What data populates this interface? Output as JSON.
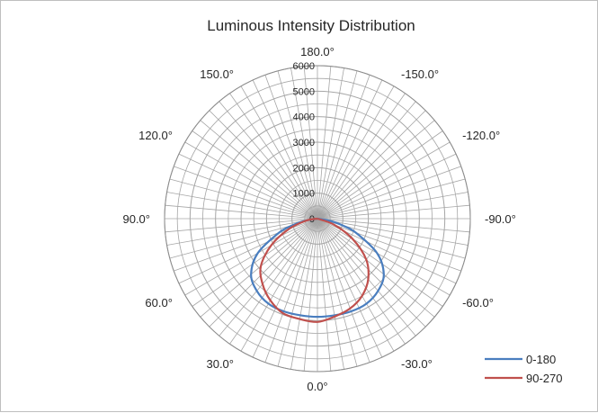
{
  "chart_data": {
    "type": "polar-line",
    "title": "Luminous Intensity Distribution",
    "radial_axis": {
      "min": 0,
      "max": 6000,
      "major_step": 1000,
      "minor_step": 500,
      "tick_labels": [
        "0",
        "1000",
        "2000",
        "3000",
        "4000",
        "5000",
        "6000"
      ]
    },
    "angular_axis": {
      "zero_at": "bottom",
      "spoke_step_deg": 5,
      "labels": [
        {
          "angle": 0,
          "text": "0.0°"
        },
        {
          "angle": 30,
          "text": "30.0°"
        },
        {
          "angle": 60,
          "text": "60.0°"
        },
        {
          "angle": 90,
          "text": "90.0°"
        },
        {
          "angle": 120,
          "text": "120.0°"
        },
        {
          "angle": 150,
          "text": "150.0°"
        },
        {
          "angle": 180,
          "text": "180.0°"
        },
        {
          "angle": -150,
          "text": "-150.0°"
        },
        {
          "angle": -120,
          "text": "-120.0°"
        },
        {
          "angle": -90,
          "text": "-90.0°"
        },
        {
          "angle": -60,
          "text": "-60.0°"
        },
        {
          "angle": -30,
          "text": "-30.0°"
        }
      ]
    },
    "legend_position": "bottom-right",
    "series": [
      {
        "name": "0-180",
        "color": "#4a7ebf",
        "points": [
          {
            "angle": -90,
            "r": 0
          },
          {
            "angle": -80,
            "r": 520
          },
          {
            "angle": -75,
            "r": 1000
          },
          {
            "angle": -70,
            "r": 1600
          },
          {
            "angle": -60,
            "r": 2700
          },
          {
            "angle": -50,
            "r": 3400
          },
          {
            "angle": -40,
            "r": 3700
          },
          {
            "angle": -30,
            "r": 3850
          },
          {
            "angle": -20,
            "r": 3870
          },
          {
            "angle": -10,
            "r": 3850
          },
          {
            "angle": 0,
            "r": 3850
          },
          {
            "angle": 10,
            "r": 3850
          },
          {
            "angle": 20,
            "r": 3870
          },
          {
            "angle": 30,
            "r": 3850
          },
          {
            "angle": 40,
            "r": 3700
          },
          {
            "angle": 50,
            "r": 3400
          },
          {
            "angle": 60,
            "r": 2700
          },
          {
            "angle": 70,
            "r": 1600
          },
          {
            "angle": 75,
            "r": 1000
          },
          {
            "angle": 80,
            "r": 520
          },
          {
            "angle": 90,
            "r": 0
          }
        ]
      },
      {
        "name": "90-270",
        "color": "#c0504d",
        "points": [
          {
            "angle": -90,
            "r": 0
          },
          {
            "angle": -70,
            "r": 700
          },
          {
            "angle": -60,
            "r": 1600
          },
          {
            "angle": -50,
            "r": 2500
          },
          {
            "angle": -40,
            "r": 3100
          },
          {
            "angle": -30,
            "r": 3500
          },
          {
            "angle": -20,
            "r": 3750
          },
          {
            "angle": -10,
            "r": 3900
          },
          {
            "angle": 0,
            "r": 4050
          },
          {
            "angle": 10,
            "r": 4000
          },
          {
            "angle": 20,
            "r": 3950
          },
          {
            "angle": 30,
            "r": 3700
          },
          {
            "angle": 40,
            "r": 3350
          },
          {
            "angle": 50,
            "r": 2900
          },
          {
            "angle": 60,
            "r": 2100
          },
          {
            "angle": 70,
            "r": 1200
          },
          {
            "angle": 80,
            "r": 450
          },
          {
            "angle": 90,
            "r": 0
          }
        ]
      }
    ]
  }
}
